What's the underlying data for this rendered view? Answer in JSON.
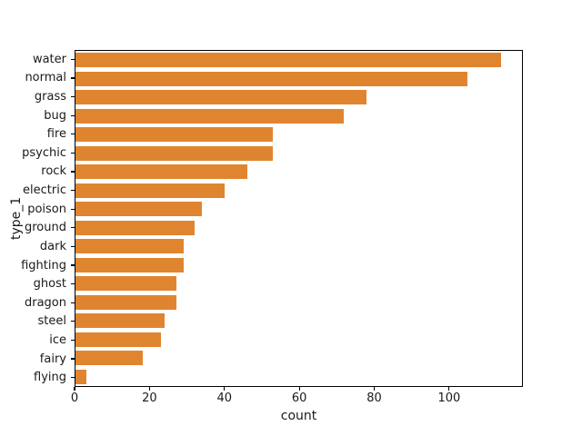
{
  "colors": {
    "bar": "#e0852f",
    "spine": "#000000",
    "text": "#1a1a1a",
    "background": "#ffffff"
  },
  "axes": {
    "xlabel": "count",
    "ylabel": "type_1"
  },
  "chart_data": {
    "type": "bar",
    "orientation": "horizontal",
    "title": "",
    "xlabel": "count",
    "ylabel": "type_1",
    "categories": [
      "water",
      "normal",
      "grass",
      "bug",
      "fire",
      "psychic",
      "rock",
      "electric",
      "poison",
      "ground",
      "dark",
      "fighting",
      "ghost",
      "dragon",
      "steel",
      "ice",
      "fairy",
      "flying"
    ],
    "values": [
      114,
      105,
      78,
      72,
      53,
      53,
      46,
      40,
      34,
      32,
      29,
      29,
      27,
      27,
      24,
      23,
      18,
      3
    ],
    "xticks": [
      0,
      20,
      40,
      60,
      80,
      100
    ],
    "xtick_labels": [
      "0",
      "20",
      "40",
      "60",
      "80",
      "100"
    ],
    "xlim": [
      0,
      119.7
    ],
    "grid": false,
    "legend": null,
    "bar_color": "#e0852f"
  }
}
